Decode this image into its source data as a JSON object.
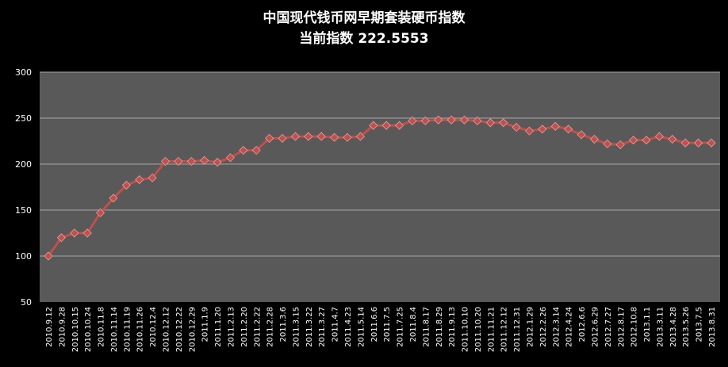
{
  "colors": {
    "background": "#000000",
    "plot_area": "#595959",
    "grid": "#a6a6a6",
    "series": "#c0504d",
    "text": "#ffffff"
  },
  "chart_data": {
    "type": "line",
    "title": "中国现代钱币网早期套装硬币指数",
    "subtitle": "当前指数 222.5553",
    "xlabel": "",
    "ylabel": "",
    "ylim": [
      50,
      300
    ],
    "yticks": [
      50,
      100,
      150,
      200,
      250,
      300
    ],
    "grid": true,
    "legend": "none",
    "marker": "diamond",
    "categories": [
      "2010.9.12",
      "2010.9.28",
      "2010.10.15",
      "2010.10.24",
      "2010.11.8",
      "2010.11.14",
      "2010.11.19",
      "2010.11.26",
      "2010.12.4",
      "2010.12.12",
      "2010.12.22",
      "2010.12.29",
      "2011.1.9",
      "2011.1.20",
      "2011.2.13",
      "2011.2.20",
      "2011.2.22",
      "2011.2.28",
      "2011.3.6",
      "2011.3.15",
      "2011.3.22",
      "2011.3.27",
      "2011.4.7",
      "2011.4.23",
      "2011.5.14",
      "2011.6.6",
      "2011.7.5",
      "2011.7.25",
      "2011.8.4",
      "2011.8.17",
      "2011.8.29",
      "2011.9.13",
      "2011.10.10",
      "2011.10.20",
      "2011.11.21",
      "2011.12.12",
      "2011.12.31",
      "2012.1.29",
      "2012.2.26",
      "2012.3.14",
      "2012.4.24",
      "2012.6.6",
      "2012.6.29",
      "2012.7.27",
      "2012.8.17",
      "2012.10.8",
      "2013.1.1",
      "2013.3.11",
      "2013.4.28",
      "2013.5.26",
      "2013.7.5",
      "2013.8.31"
    ],
    "series": [
      {
        "values": [
          100,
          120,
          125,
          125,
          147,
          163,
          177,
          183,
          185,
          203,
          203,
          203,
          204,
          202,
          207,
          215,
          215,
          228,
          228,
          230,
          230,
          230,
          229,
          229,
          230,
          242,
          242,
          242,
          247,
          247,
          248,
          248,
          248,
          247,
          245,
          245,
          240,
          236,
          238,
          241,
          238,
          232,
          227,
          222,
          221,
          226,
          226,
          230,
          227,
          223,
          223,
          223
        ]
      }
    ]
  }
}
